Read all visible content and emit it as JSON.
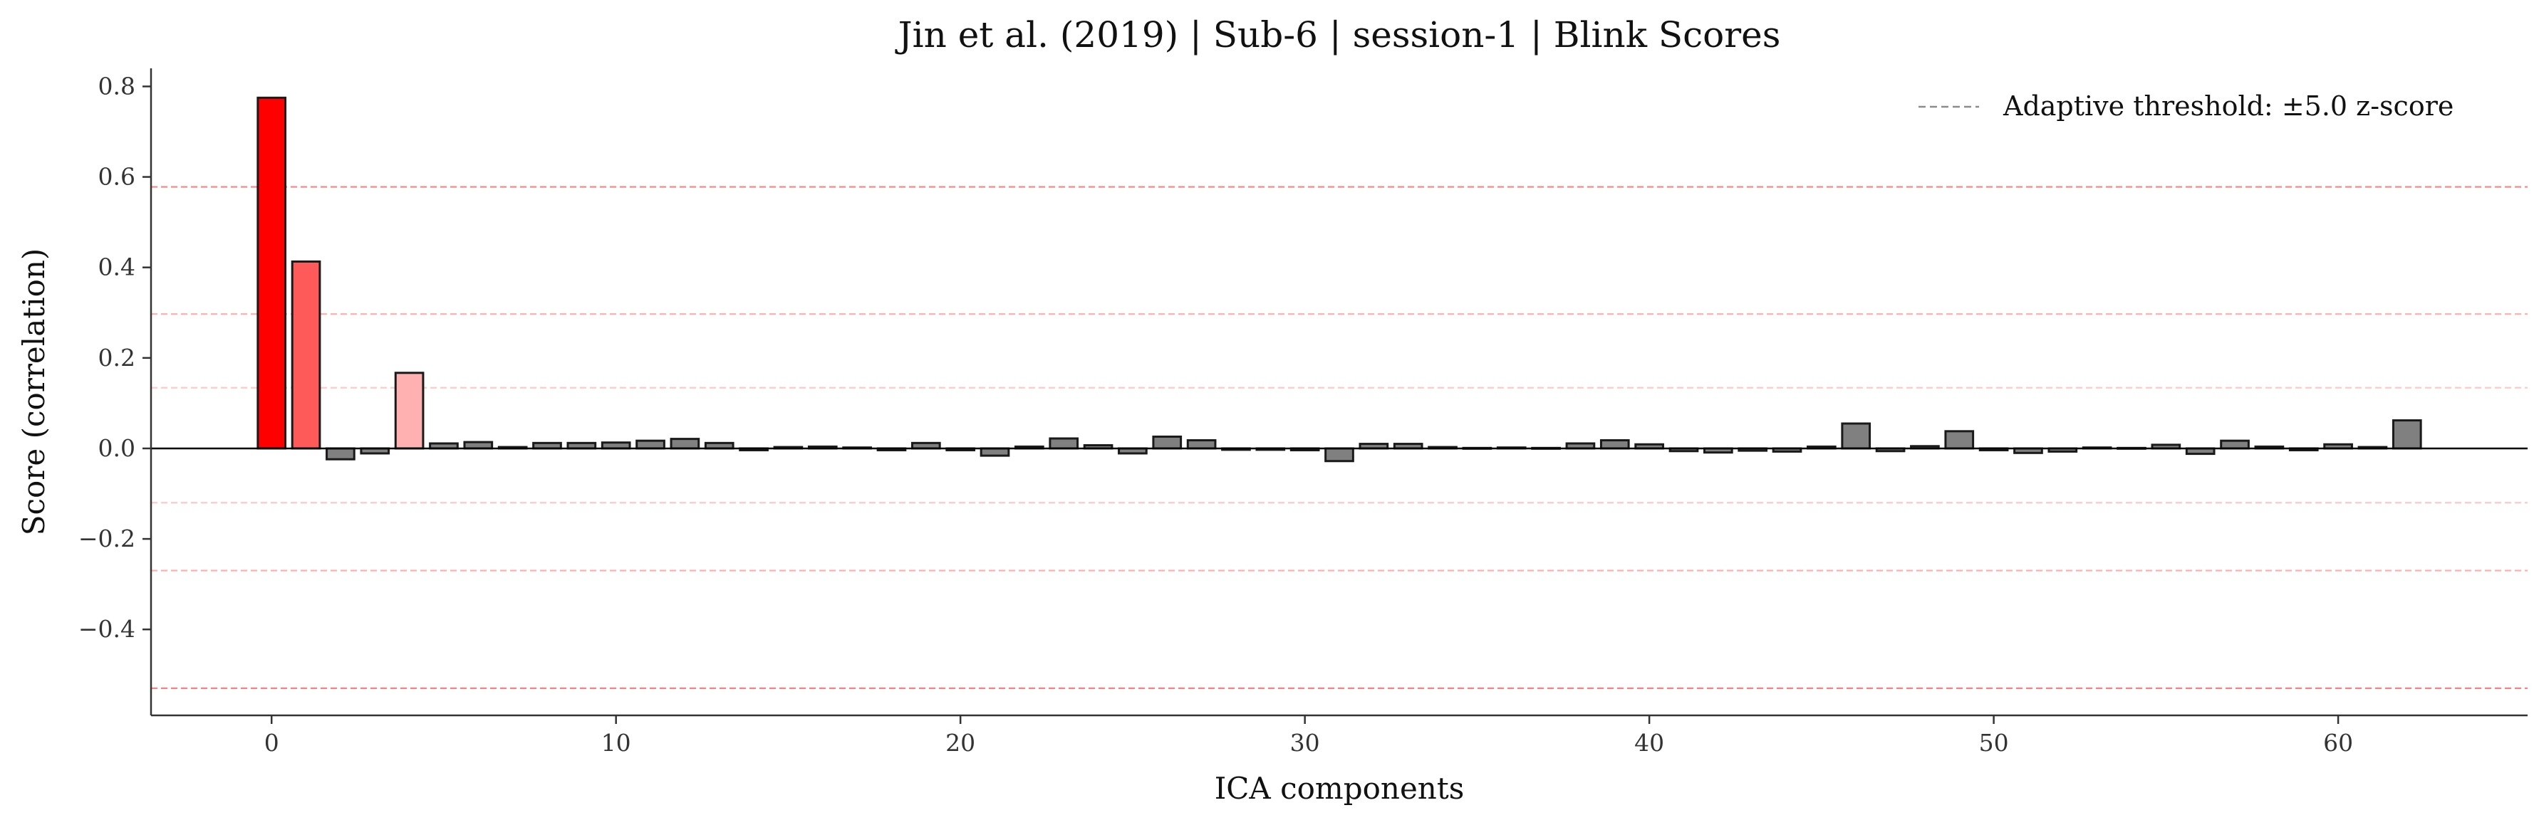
{
  "chart_data": {
    "type": "bar",
    "title": "Jin et al. (2019) | Sub-6 | session-1 | Blink Scores",
    "xlabel": "ICA components",
    "ylabel": "Score (correlation)",
    "xlim": [
      -3.5,
      65.5
    ],
    "ylim": [
      -0.59,
      0.84
    ],
    "xticks": [
      0,
      10,
      20,
      30,
      40,
      50,
      60
    ],
    "yticks": [
      -0.4,
      -0.2,
      0.0,
      0.2,
      0.4,
      0.6,
      0.8
    ],
    "ytick_labels": [
      "−0.4",
      "−0.2",
      "0.0",
      "0.2",
      "0.4",
      "0.6",
      "0.8"
    ],
    "legend": {
      "position": "top-right",
      "label": "Adaptive threshold: ±5.0 z-score"
    },
    "thresholds": [
      {
        "value": 0.578,
        "color": "#ff6b6b",
        "opacity": 0.85
      },
      {
        "value": 0.297,
        "color": "#ff8a8a",
        "opacity": 0.7
      },
      {
        "value": 0.134,
        "color": "#ffb3b3",
        "opacity": 0.7
      },
      {
        "value": -0.12,
        "color": "#ffb3b3",
        "opacity": 0.7
      },
      {
        "value": -0.27,
        "color": "#ff8a8a",
        "opacity": 0.7
      },
      {
        "value": -0.53,
        "color": "#ff6b6b",
        "opacity": 0.85
      }
    ],
    "x": [
      0,
      1,
      2,
      3,
      4,
      5,
      6,
      7,
      8,
      9,
      10,
      11,
      12,
      13,
      14,
      15,
      16,
      17,
      18,
      19,
      20,
      21,
      22,
      23,
      24,
      25,
      26,
      27,
      28,
      29,
      30,
      31,
      32,
      33,
      34,
      35,
      36,
      37,
      38,
      39,
      40,
      41,
      42,
      43,
      44,
      45,
      46,
      47,
      48,
      49,
      50,
      51,
      52,
      53,
      54,
      55,
      56,
      57,
      58,
      59,
      60,
      61,
      62
    ],
    "values": [
      0.775,
      0.413,
      -0.024,
      -0.011,
      0.167,
      0.011,
      0.014,
      0.003,
      0.012,
      0.012,
      0.013,
      0.017,
      0.021,
      0.012,
      -0.004,
      0.003,
      0.004,
      0.002,
      -0.004,
      0.012,
      -0.004,
      -0.016,
      0.004,
      0.022,
      0.007,
      -0.011,
      0.026,
      0.018,
      -0.003,
      -0.003,
      -0.004,
      -0.028,
      0.01,
      0.01,
      0.003,
      0.001,
      0.002,
      0.001,
      0.011,
      0.018,
      0.009,
      -0.006,
      -0.009,
      -0.005,
      -0.007,
      0.004,
      0.055,
      -0.006,
      0.005,
      0.038,
      -0.004,
      -0.01,
      -0.007,
      0.002,
      0.001,
      0.008,
      -0.012,
      0.017,
      0.004,
      -0.004,
      0.009,
      0.003,
      0.062
    ],
    "bar_colors": [
      "#ff0000",
      "#ff5a5a",
      "#808080",
      "#808080",
      "#ffb0b0",
      "#808080",
      "#808080",
      "#808080",
      "#808080",
      "#808080",
      "#808080",
      "#808080",
      "#808080",
      "#808080",
      "#808080",
      "#808080",
      "#808080",
      "#808080",
      "#808080",
      "#808080",
      "#808080",
      "#808080",
      "#808080",
      "#808080",
      "#808080",
      "#808080",
      "#808080",
      "#808080",
      "#808080",
      "#808080",
      "#808080",
      "#808080",
      "#808080",
      "#808080",
      "#808080",
      "#808080",
      "#808080",
      "#808080",
      "#808080",
      "#808080",
      "#808080",
      "#808080",
      "#808080",
      "#808080",
      "#808080",
      "#808080",
      "#808080",
      "#808080",
      "#808080",
      "#808080",
      "#808080",
      "#808080",
      "#808080",
      "#808080",
      "#808080",
      "#808080",
      "#808080",
      "#808080",
      "#808080",
      "#808080",
      "#808080",
      "#808080",
      "#808080"
    ],
    "grid": false
  }
}
